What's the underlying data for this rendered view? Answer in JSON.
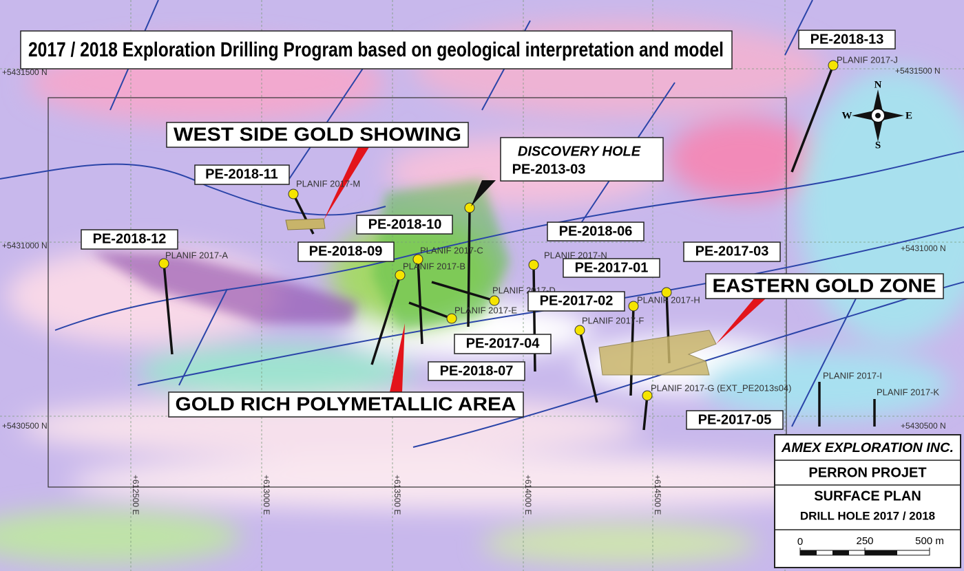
{
  "title": "2017 / 2018 Exploration Drilling Program based on geological interpretation and model",
  "zones": {
    "west_side": "WEST SIDE GOLD SHOWING",
    "discovery": {
      "line1": "DISCOVERY HOLE",
      "line2": "PE-2013-03"
    },
    "polymetallic": "GOLD RICH POLYMETALLIC AREA",
    "eastern": "EASTERN GOLD ZONE"
  },
  "drill_holes": [
    "PE-2018-13",
    "PE-2018-11",
    "PE-2018-12",
    "PE-2018-10",
    "PE-2018-09",
    "PE-2018-06",
    "PE-2017-03",
    "PE-2017-01",
    "PE-2017-02",
    "PE-2017-04",
    "PE-2018-07",
    "PE-2017-05"
  ],
  "planif_labels": [
    "PLANIF 2017-J",
    "PLANIF 2017-M",
    "PLANIF 2017-A",
    "PLANIF 2017-C",
    "PLANIF 2017-B",
    "PLANIF 2017-N",
    "PLANIF 2017-D",
    "PLANIF 2017-E",
    "PLANIF 2017-F",
    "PLANIF 2017-H",
    "PLANIF 2017-G (EXT_PE2013s04)",
    "PLANIF 2017-I",
    "PLANIF 2017-K"
  ],
  "grid": {
    "northings": [
      "+5431500 N",
      "+5431000 N",
      "+5430500 N"
    ],
    "eastings": [
      "+612500 E",
      "+613000 E",
      "+613500 E",
      "+614000 E",
      "+614500 E"
    ]
  },
  "compass": {
    "n": "N",
    "s": "S",
    "e": "E",
    "w": "W"
  },
  "title_block": {
    "company": "AMEX EXPLORATION INC.",
    "project": "PERRON PROJET",
    "plan": "SURFACE PLAN",
    "drill_hole": "DRILL HOLE 2017 / 2018"
  },
  "scale_bar": {
    "labels": [
      "0",
      "250",
      "500 m"
    ]
  }
}
